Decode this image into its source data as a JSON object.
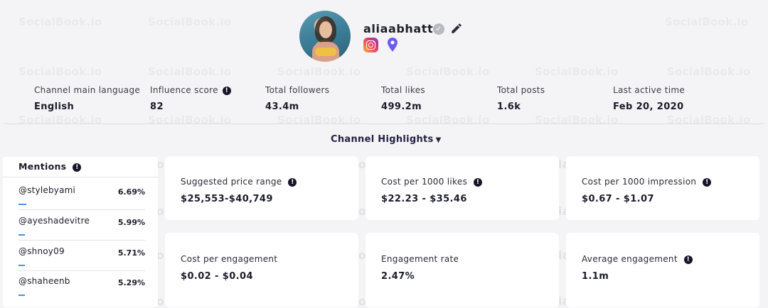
{
  "watermark": "SocialBook.io",
  "profile": {
    "username": "aliaabhatt",
    "verified_icon": "verified-check-icon",
    "edit_icon": "pencil-icon",
    "platform_icon": "instagram-icon",
    "location_icon": "location-pin-icon"
  },
  "stats": [
    {
      "label": "Channel main language",
      "value": "English",
      "info": false
    },
    {
      "label": "Influence score",
      "value": "82",
      "info": true
    },
    {
      "label": "Total followers",
      "value": "43.4m",
      "info": false
    },
    {
      "label": "Total likes",
      "value": "499.2m",
      "info": false
    },
    {
      "label": "Total posts",
      "value": "1.6k",
      "info": false
    },
    {
      "label": "Last active time",
      "value": "Feb 20, 2020",
      "info": false
    }
  ],
  "highlights": {
    "label": "Channel Highlights"
  },
  "mentions": {
    "title": "Mentions",
    "items": [
      {
        "handle": "@stylebyami",
        "percent": "6.69%",
        "bar_fraction": 0.06
      },
      {
        "handle": "@ayeshadevitre",
        "percent": "5.99%",
        "bar_fraction": 0.05
      },
      {
        "handle": "@shnoy09",
        "percent": "5.71%",
        "bar_fraction": 0.05
      },
      {
        "handle": "@shaheenb",
        "percent": "5.29%",
        "bar_fraction": 0.05
      }
    ]
  },
  "cards": [
    {
      "label": "Suggested price range",
      "value": "$25,553-$40,749",
      "info": true
    },
    {
      "label": "Cost per 1000 likes",
      "value": "$22.23 - $35.46",
      "info": true
    },
    {
      "label": "Cost per 1000 impression",
      "value": "$0.67 - $1.07",
      "info": true
    },
    {
      "label": "Cost per engagement",
      "value": "$0.02 - $0.04",
      "info": false
    },
    {
      "label": "Engagement rate",
      "value": "2.47%",
      "info": false
    },
    {
      "label": "Average engagement",
      "value": "1.1m",
      "info": true
    }
  ],
  "colors": {
    "background": "#f4f4f6",
    "accent_bar": "#4c8fe8",
    "location_pin": "#6a5cf0",
    "text_dark": "#1c1c2b"
  }
}
